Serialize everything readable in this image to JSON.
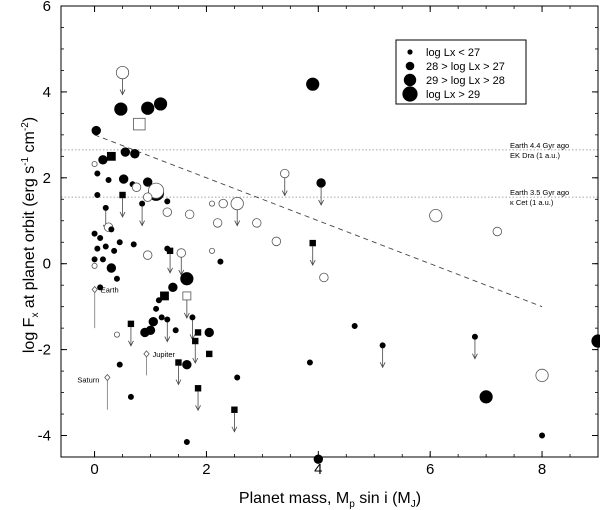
{
  "chart_data": {
    "type": "scatter",
    "title": "",
    "xlabel_main": "Planet mass, M",
    "xlabel_sub1": "p",
    "xlabel_mid": " sin i (M",
    "xlabel_sub2": "J",
    "xlabel_end": ")",
    "ylabel_main": "log F",
    "ylabel_sub": "x",
    "ylabel_mid": " at planet orbit (erg s",
    "ylabel_sup1": "-1",
    "ylabel_mid2": " cm",
    "ylabel_sup2": "-2",
    "ylabel_end": ")",
    "xlim": [
      -0.6,
      9.0
    ],
    "ylim": [
      -4.5,
      6.0
    ],
    "x_ticks": [
      0,
      2,
      4,
      6,
      8
    ],
    "y_ticks": [
      -4,
      -2,
      0,
      2,
      4,
      6
    ],
    "grid": false,
    "legend_position": "top-right",
    "legend": [
      {
        "label": "log Lx < 27",
        "size": 1
      },
      {
        "label": "28 > log Lx > 27",
        "size": 2
      },
      {
        "label": "29 > log Lx > 28",
        "size": 3
      },
      {
        "label": "log Lx > 29",
        "size": 4
      }
    ],
    "reference_lines": [
      {
        "y": 2.65,
        "label1": "Earth 4.4 Gyr ago",
        "label2": "EK Dra (1 a.u.)"
      },
      {
        "y": 1.55,
        "label1": "Earth 3.5 Gyr ago",
        "label2": "κ Cet (1 a.u.)"
      }
    ],
    "trend_line": {
      "x": [
        0.0,
        8.0
      ],
      "y": [
        3.0,
        -1.0
      ]
    },
    "solar_system": [
      {
        "name": "Earth",
        "x": 0.003,
        "y": -0.6,
        "err_low": -1.5
      },
      {
        "name": "Jupiter",
        "x": 1.0,
        "y": -2.1,
        "err_low": -2.6
      },
      {
        "name": "Saturn",
        "x": 0.3,
        "y": -2.65,
        "err_low": -3.4
      }
    ],
    "points": [
      {
        "x": 0.5,
        "y": 4.45,
        "size": 3,
        "filled": false,
        "upper": true
      },
      {
        "x": 0.47,
        "y": 3.6,
        "size": 3,
        "filled": true
      },
      {
        "x": 0.95,
        "y": 3.62,
        "size": 3,
        "filled": true
      },
      {
        "x": 1.18,
        "y": 3.72,
        "size": 3,
        "filled": true
      },
      {
        "x": 0.8,
        "y": 3.25,
        "size": 3,
        "filled": false,
        "square": true
      },
      {
        "x": 0.03,
        "y": 3.1,
        "size": 2,
        "filled": true
      },
      {
        "x": 3.9,
        "y": 4.18,
        "size": 3,
        "filled": true
      },
      {
        "x": 0.0,
        "y": 2.32,
        "size": 1,
        "filled": false
      },
      {
        "x": 0.15,
        "y": 2.42,
        "size": 2,
        "filled": true
      },
      {
        "x": 0.3,
        "y": 2.5,
        "size": 2,
        "filled": true,
        "square": true
      },
      {
        "x": 0.55,
        "y": 2.6,
        "size": 2,
        "filled": true
      },
      {
        "x": 0.72,
        "y": 2.56,
        "size": 2,
        "filled": true
      },
      {
        "x": 0.05,
        "y": 2.1,
        "size": 1,
        "filled": true
      },
      {
        "x": 0.25,
        "y": 1.95,
        "size": 1,
        "filled": true
      },
      {
        "x": 0.52,
        "y": 1.97,
        "size": 2,
        "filled": true
      },
      {
        "x": 0.95,
        "y": 1.9,
        "size": 2,
        "filled": true
      },
      {
        "x": 0.68,
        "y": 1.85,
        "size": 1,
        "filled": true
      },
      {
        "x": 0.75,
        "y": 1.78,
        "size": 2,
        "filled": false
      },
      {
        "x": 1.1,
        "y": 1.65,
        "size": 4,
        "filled": true
      },
      {
        "x": 1.1,
        "y": 1.7,
        "size": 4,
        "filled": false
      },
      {
        "x": 0.95,
        "y": 1.55,
        "size": 2,
        "filled": false
      },
      {
        "x": 0.05,
        "y": 1.6,
        "size": 1,
        "filled": true
      },
      {
        "x": 0.5,
        "y": 1.6,
        "size": 1,
        "filled": true,
        "square": true,
        "upper": true
      },
      {
        "x": 0.85,
        "y": 1.4,
        "size": 1,
        "filled": true,
        "upper": true
      },
      {
        "x": 0.2,
        "y": 1.3,
        "size": 1,
        "filled": true,
        "upper": true
      },
      {
        "x": 1.3,
        "y": 1.45,
        "size": 1,
        "filled": true
      },
      {
        "x": 1.3,
        "y": 1.2,
        "size": 2,
        "filled": false
      },
      {
        "x": 1.7,
        "y": 1.15,
        "size": 2,
        "filled": false
      },
      {
        "x": 2.1,
        "y": 1.4,
        "size": 1,
        "filled": false
      },
      {
        "x": 2.3,
        "y": 1.4,
        "size": 2,
        "filled": false
      },
      {
        "x": 2.55,
        "y": 1.4,
        "size": 3,
        "filled": false,
        "upper": true
      },
      {
        "x": 3.4,
        "y": 2.1,
        "size": 2,
        "filled": false,
        "upper": true
      },
      {
        "x": 4.05,
        "y": 1.88,
        "size": 2,
        "filled": true,
        "upper": true
      },
      {
        "x": 2.2,
        "y": 0.95,
        "size": 2,
        "filled": false
      },
      {
        "x": 2.9,
        "y": 0.95,
        "size": 2,
        "filled": false
      },
      {
        "x": 3.25,
        "y": 0.52,
        "size": 2,
        "filled": false
      },
      {
        "x": 3.9,
        "y": 0.48,
        "size": 1,
        "filled": true,
        "square": true,
        "upper": true
      },
      {
        "x": 4.1,
        "y": -0.32,
        "size": 2,
        "filled": false
      },
      {
        "x": 6.1,
        "y": 1.12,
        "size": 3,
        "filled": false
      },
      {
        "x": 7.2,
        "y": 0.75,
        "size": 2,
        "filled": false
      },
      {
        "x": 0.0,
        "y": 0.7,
        "size": 1,
        "filled": true
      },
      {
        "x": 0.1,
        "y": 0.6,
        "size": 1,
        "filled": true
      },
      {
        "x": 0.05,
        "y": 0.35,
        "size": 1,
        "filled": true
      },
      {
        "x": 0.25,
        "y": 0.85,
        "size": 2,
        "filled": false
      },
      {
        "x": 0.3,
        "y": 0.8,
        "size": 1,
        "filled": true
      },
      {
        "x": 0.45,
        "y": 0.5,
        "size": 1,
        "filled": true
      },
      {
        "x": 0.7,
        "y": 0.45,
        "size": 1,
        "filled": true
      },
      {
        "x": 0.2,
        "y": 0.4,
        "size": 1,
        "filled": true
      },
      {
        "x": 0.15,
        "y": 0.1,
        "size": 1,
        "filled": true
      },
      {
        "x": 0.35,
        "y": 0.3,
        "size": 1,
        "filled": true
      },
      {
        "x": 0.95,
        "y": 0.2,
        "size": 2,
        "filled": false
      },
      {
        "x": 1.3,
        "y": 0.35,
        "size": 1,
        "filled": true
      },
      {
        "x": 1.35,
        "y": 0.3,
        "size": 1,
        "filled": true,
        "square": true,
        "upper": true
      },
      {
        "x": 1.55,
        "y": 0.25,
        "size": 2,
        "filled": false,
        "upper": true
      },
      {
        "x": 2.1,
        "y": 0.3,
        "size": 1,
        "filled": false
      },
      {
        "x": 2.25,
        "y": 0.05,
        "size": 1,
        "filled": true
      },
      {
        "x": 0.0,
        "y": 0.1,
        "size": 1,
        "filled": true
      },
      {
        "x": 0.0,
        "y": -0.05,
        "size": 1,
        "filled": false
      },
      {
        "x": 0.3,
        "y": -0.1,
        "size": 2,
        "filled": true
      },
      {
        "x": 0.4,
        "y": -0.35,
        "size": 1,
        "filled": true
      },
      {
        "x": 0.1,
        "y": -0.55,
        "size": 1,
        "filled": true
      },
      {
        "x": 1.4,
        "y": -0.55,
        "size": 2,
        "filled": true
      },
      {
        "x": 1.65,
        "y": -0.35,
        "size": 3,
        "filled": true
      },
      {
        "x": 1.65,
        "y": -0.75,
        "size": 2,
        "filled": false,
        "square": true,
        "upper": true
      },
      {
        "x": 1.25,
        "y": -0.75,
        "size": 2,
        "filled": true,
        "square": true
      },
      {
        "x": 1.15,
        "y": -0.85,
        "size": 1,
        "filled": true
      },
      {
        "x": 1.1,
        "y": -1.05,
        "size": 1,
        "filled": true
      },
      {
        "x": 1.2,
        "y": -1.25,
        "size": 1,
        "filled": true
      },
      {
        "x": 1.3,
        "y": -1.3,
        "size": 1,
        "filled": true,
        "upper": true
      },
      {
        "x": 1.05,
        "y": -1.35,
        "size": 2,
        "filled": true
      },
      {
        "x": 1.0,
        "y": -1.55,
        "size": 2,
        "filled": true
      },
      {
        "x": 0.65,
        "y": -1.4,
        "size": 1,
        "filled": true,
        "square": true,
        "upper": true
      },
      {
        "x": 0.9,
        "y": -1.6,
        "size": 2,
        "filled": true
      },
      {
        "x": 1.75,
        "y": -1.25,
        "size": 1,
        "filled": true,
        "upper": true
      },
      {
        "x": 1.85,
        "y": -1.6,
        "size": 1,
        "filled": true,
        "square": true
      },
      {
        "x": 2.05,
        "y": -1.6,
        "size": 2,
        "filled": true
      },
      {
        "x": 1.8,
        "y": -1.8,
        "size": 1,
        "filled": true,
        "square": true,
        "upper": true
      },
      {
        "x": 1.45,
        "y": -1.55,
        "size": 1,
        "filled": true
      },
      {
        "x": 2.05,
        "y": -2.1,
        "size": 1,
        "filled": true,
        "square": true
      },
      {
        "x": 1.5,
        "y": -2.3,
        "size": 1,
        "filled": true,
        "square": true,
        "upper": true
      },
      {
        "x": 0.4,
        "y": -1.65,
        "size": 1,
        "filled": false
      },
      {
        "x": 0.45,
        "y": -2.35,
        "size": 1,
        "filled": true
      },
      {
        "x": 0.65,
        "y": -3.1,
        "size": 1,
        "filled": true
      },
      {
        "x": 1.65,
        "y": -2.35,
        "size": 2,
        "filled": true
      },
      {
        "x": 1.85,
        "y": -2.9,
        "size": 1,
        "filled": true,
        "square": true,
        "upper": true
      },
      {
        "x": 2.55,
        "y": -2.65,
        "size": 1,
        "filled": true
      },
      {
        "x": 2.5,
        "y": -3.4,
        "size": 1,
        "filled": true,
        "square": true,
        "upper": true
      },
      {
        "x": 1.65,
        "y": -4.15,
        "size": 1,
        "filled": true
      },
      {
        "x": 3.85,
        "y": -2.3,
        "size": 1,
        "filled": true
      },
      {
        "x": 4.65,
        "y": -1.45,
        "size": 1,
        "filled": true
      },
      {
        "x": 5.15,
        "y": -1.9,
        "size": 1,
        "filled": true,
        "upper": true
      },
      {
        "x": 6.8,
        "y": -1.7,
        "size": 1,
        "filled": true,
        "upper": true
      },
      {
        "x": 7.0,
        "y": -3.1,
        "size": 3,
        "filled": true
      },
      {
        "x": 8.0,
        "y": -2.6,
        "size": 3,
        "filled": false
      },
      {
        "x": 8.0,
        "y": -4.0,
        "size": 1,
        "filled": true
      },
      {
        "x": 9.0,
        "y": -1.8,
        "size": 3,
        "filled": true
      },
      {
        "x": 4.0,
        "y": -4.55,
        "size": 2,
        "filled": true
      }
    ]
  }
}
